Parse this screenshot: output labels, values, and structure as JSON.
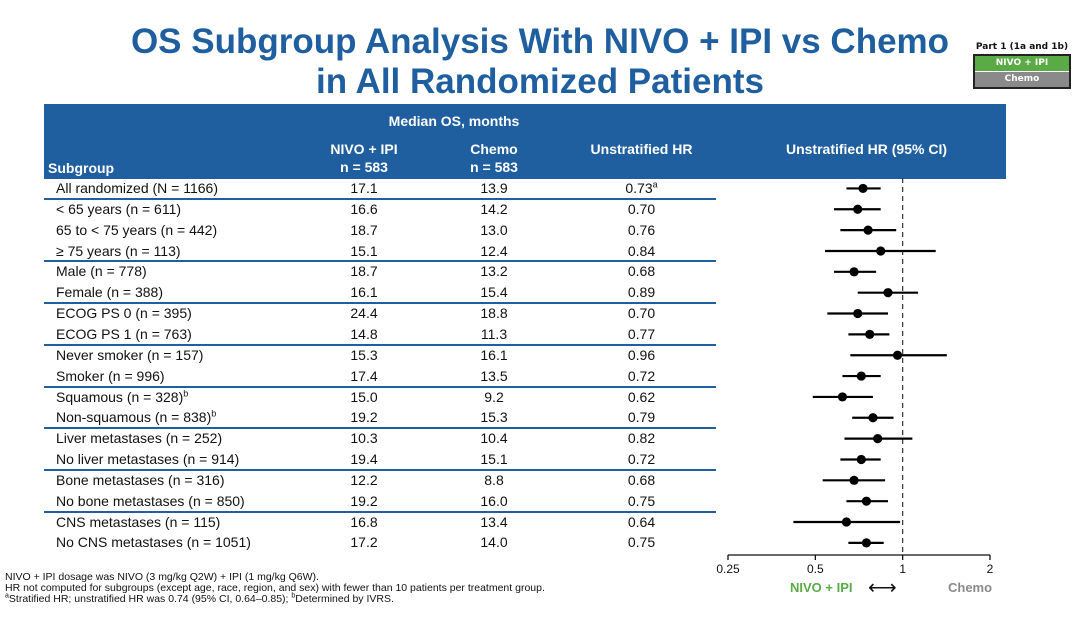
{
  "title": {
    "line1": "OS Subgroup Analysis With NIVO + IPI vs Chemo",
    "line2": "in All Randomized Patients"
  },
  "legend": {
    "title": "Part 1 (1a and 1b)",
    "nivo": "NIVO + IPI",
    "chemo": "Chemo"
  },
  "colors": {
    "header_bg": "#1f5fa0",
    "nivo": "#5aaa46",
    "chemo": "#8a8a8a"
  },
  "header": {
    "median_os": "Median OS, months",
    "subgroup": "Subgroup",
    "nivo_line1": "NIVO + IPI",
    "nivo_line2": "n = 583",
    "chemo_line1": "Chemo",
    "chemo_line2": "n = 583",
    "hr": "Unstratified HR",
    "hr_ci": "Unstratified HR (95% CI)"
  },
  "chart_data": {
    "type": "forest",
    "title": "Unstratified HR (95% CI)",
    "x_scale": "log",
    "xlim": [
      0.25,
      2
    ],
    "xticks": [
      0.25,
      0.5,
      1,
      2
    ],
    "xtick_labels": [
      "0.25",
      "0.5",
      "1",
      "2"
    ],
    "reference_line": 1,
    "favors_left": "NIVO + IPI",
    "favors_right": "Chemo",
    "rows": [
      {
        "subgroup": "All randomized (N = 1166)",
        "nivo": "17.1",
        "chemo": "13.9",
        "hr": "0.73",
        "hr_sup": "a",
        "est": 0.73,
        "lo": 0.64,
        "hi": 0.84
      },
      {
        "subgroup": "< 65 years (n = 611)",
        "nivo": "16.6",
        "chemo": "14.2",
        "hr": "0.70",
        "est": 0.7,
        "lo": 0.58,
        "hi": 0.84
      },
      {
        "subgroup": "65 to < 75 years (n = 442)",
        "nivo": "18.7",
        "chemo": "13.0",
        "hr": "0.76",
        "est": 0.76,
        "lo": 0.61,
        "hi": 0.95
      },
      {
        "subgroup": "≥ 75 years (n = 113)",
        "nivo": "15.1",
        "chemo": "12.4",
        "hr": "0.84",
        "est": 0.84,
        "lo": 0.54,
        "hi": 1.3
      },
      {
        "subgroup": "Male (n = 778)",
        "nivo": "18.7",
        "chemo": "13.2",
        "hr": "0.68",
        "est": 0.68,
        "lo": 0.58,
        "hi": 0.81
      },
      {
        "subgroup": "Female (n = 388)",
        "nivo": "16.1",
        "chemo": "15.4",
        "hr": "0.89",
        "est": 0.89,
        "lo": 0.7,
        "hi": 1.13
      },
      {
        "subgroup": "ECOG PS 0 (n = 395)",
        "nivo": "24.4",
        "chemo": "18.8",
        "hr": "0.70",
        "est": 0.7,
        "lo": 0.55,
        "hi": 0.89
      },
      {
        "subgroup": "ECOG PS 1 (n = 763)",
        "nivo": "14.8",
        "chemo": "11.3",
        "hr": "0.77",
        "est": 0.77,
        "lo": 0.65,
        "hi": 0.9
      },
      {
        "subgroup": "Never smoker (n = 157)",
        "nivo": "15.3",
        "chemo": "16.1",
        "hr": "0.96",
        "est": 0.96,
        "lo": 0.66,
        "hi": 1.42
      },
      {
        "subgroup": "Smoker (n = 996)",
        "nivo": "17.4",
        "chemo": "13.5",
        "hr": "0.72",
        "est": 0.72,
        "lo": 0.62,
        "hi": 0.84
      },
      {
        "subgroup": "Squamous (n = 328)",
        "sub_sup": "b",
        "nivo": "15.0",
        "chemo": "9.2",
        "hr": "0.62",
        "est": 0.62,
        "lo": 0.49,
        "hi": 0.79
      },
      {
        "subgroup": "Non-squamous (n = 838)",
        "sub_sup": "b",
        "nivo": "19.2",
        "chemo": "15.3",
        "hr": "0.79",
        "est": 0.79,
        "lo": 0.67,
        "hi": 0.93
      },
      {
        "subgroup": "Liver metastases (n = 252)",
        "nivo": "10.3",
        "chemo": "10.4",
        "hr": "0.82",
        "est": 0.82,
        "lo": 0.63,
        "hi": 1.08
      },
      {
        "subgroup": "No liver metastases (n = 914)",
        "nivo": "19.4",
        "chemo": "15.1",
        "hr": "0.72",
        "est": 0.72,
        "lo": 0.61,
        "hi": 0.84
      },
      {
        "subgroup": "Bone metastases (n = 316)",
        "nivo": "12.2",
        "chemo": "8.8",
        "hr": "0.68",
        "est": 0.68,
        "lo": 0.53,
        "hi": 0.87
      },
      {
        "subgroup": "No bone metastases (n = 850)",
        "nivo": "19.2",
        "chemo": "16.0",
        "hr": "0.75",
        "est": 0.75,
        "lo": 0.64,
        "hi": 0.89
      },
      {
        "subgroup": "CNS metastases (n = 115)",
        "nivo": "16.8",
        "chemo": "13.4",
        "hr": "0.64",
        "est": 0.64,
        "lo": 0.42,
        "hi": 0.98
      },
      {
        "subgroup": "No CNS metastases (n = 1051)",
        "nivo": "17.2",
        "chemo": "14.0",
        "hr": "0.75",
        "est": 0.75,
        "lo": 0.65,
        "hi": 0.86
      }
    ]
  },
  "footnotes": {
    "line1": "NIVO + IPI dosage was NIVO (3 mg/kg Q2W) + IPI (1 mg/kg Q6W).",
    "line2": "HR not computed for subgroups (except age, race, region, and sex) with fewer than 10 patients per treatment group.",
    "line3_sup_a": "a",
    "line3a": "Stratified HR; unstratified HR was 0.74 (95% CI, 0.64–0.85); ",
    "line3_sup_b": "b",
    "line3b": "Determined by IVRS."
  }
}
